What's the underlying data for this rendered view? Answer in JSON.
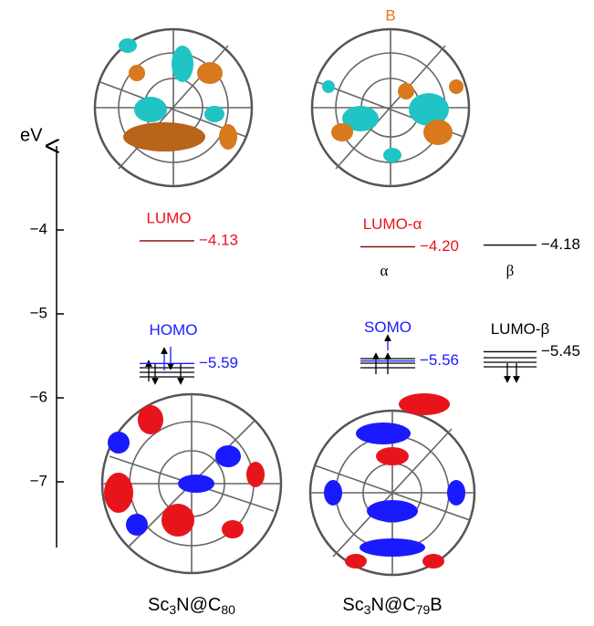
{
  "axis": {
    "label": "eV",
    "ticks": [
      {
        "value": -4,
        "label": "−4"
      },
      {
        "value": -5,
        "label": "−5"
      },
      {
        "value": -6,
        "label": "−6"
      },
      {
        "value": -7,
        "label": "−7"
      }
    ]
  },
  "molecules": [
    {
      "name_parts": [
        "Sc",
        "3",
        "N@C",
        "80"
      ],
      "levels": [
        {
          "name": "LUMO",
          "value": -4.13,
          "value_label": "−4.13",
          "color": "#e8141c"
        },
        {
          "name": "HOMO",
          "value": -5.59,
          "value_label": "−5.59",
          "color": "#1a1aff"
        }
      ]
    },
    {
      "name_parts": [
        "Sc",
        "3",
        "N@C",
        "79",
        "B"
      ],
      "dopant": "B",
      "spin_labels": [
        "α",
        "β"
      ],
      "levels": [
        {
          "name": "LUMO-α",
          "value": -4.2,
          "value_label": "−4.20",
          "color": "#e8141c"
        },
        {
          "value": -4.18,
          "value_label": "−4.18",
          "color": "#000000"
        },
        {
          "name": "SOMO",
          "value": -5.56,
          "value_label": "−5.56",
          "color": "#1a1aff"
        },
        {
          "name": "LUMO-β",
          "value": -5.45,
          "value_label": "−5.45",
          "color": "#000000"
        }
      ]
    }
  ]
}
